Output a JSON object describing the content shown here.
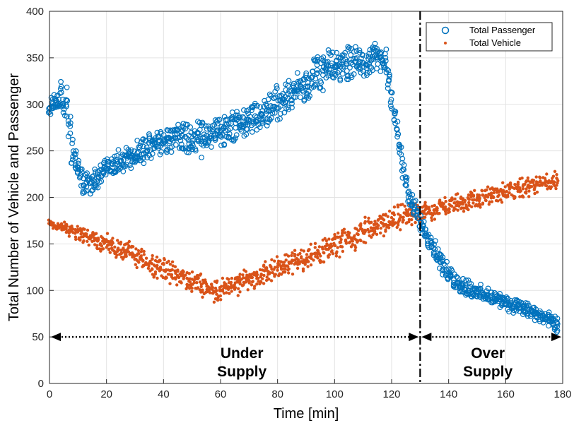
{
  "chart_data": {
    "type": "scatter",
    "xlabel": "Time [min]",
    "ylabel": "Total Number of Vehicle and Passenger",
    "xlim": [
      0,
      180
    ],
    "ylim": [
      0,
      400
    ],
    "x_ticks": [
      0,
      20,
      40,
      60,
      80,
      100,
      120,
      140,
      160,
      180
    ],
    "y_ticks": [
      0,
      50,
      100,
      150,
      200,
      250,
      300,
      350,
      400
    ],
    "grid": true,
    "legend_position": "top-right",
    "series": [
      {
        "name": "Total Passenger",
        "marker": "open-circle",
        "color": "#0072BD",
        "x": [
          0,
          2,
          4,
          6,
          8,
          10,
          12,
          14,
          16,
          18,
          20,
          25,
          30,
          35,
          40,
          45,
          50,
          55,
          60,
          65,
          70,
          75,
          80,
          85,
          90,
          95,
          100,
          105,
          110,
          115,
          118,
          120,
          122,
          124,
          126,
          128,
          130,
          135,
          140,
          145,
          150,
          155,
          160,
          165,
          170,
          175,
          178
        ],
        "y": [
          295,
          305,
          310,
          300,
          250,
          230,
          215,
          215,
          220,
          225,
          230,
          240,
          245,
          255,
          262,
          265,
          260,
          265,
          272,
          278,
          282,
          290,
          300,
          312,
          322,
          333,
          340,
          345,
          348,
          350,
          345,
          310,
          270,
          230,
          200,
          188,
          175,
          145,
          115,
          105,
          98,
          92,
          88,
          82,
          75,
          68,
          62
        ],
        "spread": [
          10,
          14,
          18,
          20,
          16,
          16,
          14,
          14,
          14,
          16,
          16,
          16,
          16,
          18,
          18,
          20,
          22,
          22,
          22,
          22,
          22,
          22,
          22,
          22,
          22,
          22,
          22,
          22,
          20,
          18,
          15,
          15,
          14,
          14,
          12,
          12,
          12,
          12,
          12,
          12,
          10,
          10,
          10,
          10,
          10,
          10,
          10
        ]
      },
      {
        "name": "Total Vehicle",
        "marker": "dot",
        "color": "#D95319",
        "x": [
          0,
          10,
          20,
          30,
          40,
          50,
          58,
          65,
          70,
          80,
          90,
          100,
          110,
          120,
          125,
          130,
          140,
          150,
          160,
          170,
          178
        ],
        "y": [
          172,
          162,
          150,
          137,
          123,
          110,
          100,
          105,
          112,
          125,
          135,
          148,
          162,
          175,
          180,
          182,
          192,
          198,
          206,
          213,
          218
        ],
        "spread": [
          6,
          10,
          12,
          14,
          14,
          14,
          14,
          14,
          14,
          14,
          14,
          16,
          16,
          16,
          16,
          12,
          12,
          12,
          12,
          12,
          12
        ]
      }
    ],
    "annotations": {
      "divider_x": 130,
      "arrow_y": 50,
      "under_supply_line1": "Under",
      "under_supply_line2": "Supply",
      "over_supply_line1": "Over",
      "over_supply_line2": "Supply"
    }
  }
}
